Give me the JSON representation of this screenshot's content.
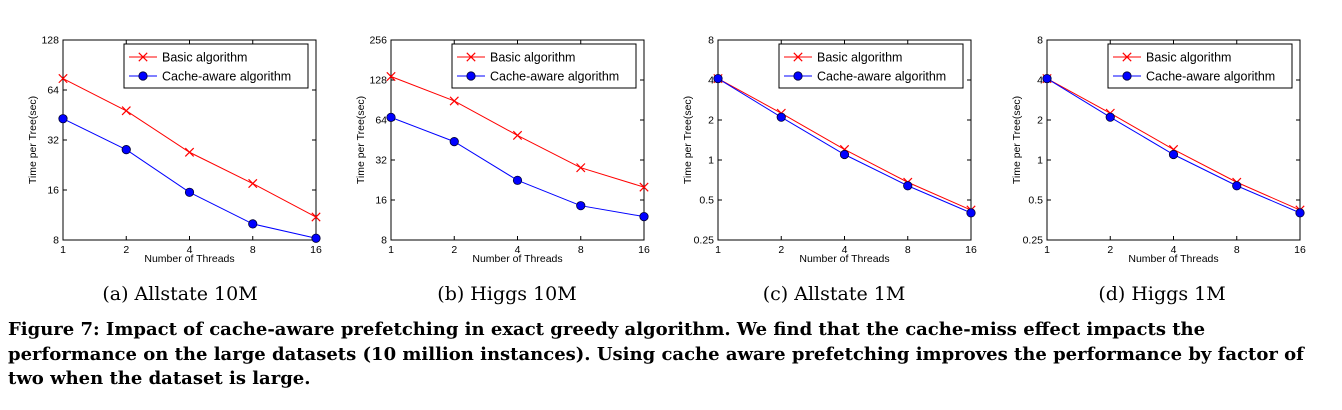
{
  "chart_data": [
    {
      "type": "line",
      "scale": "log2",
      "x": [
        1,
        2,
        4,
        8,
        16
      ],
      "xticks": [
        "1",
        "2",
        "4",
        "8",
        "16"
      ],
      "yticks": [
        {
          "v": 8,
          "label": "8"
        },
        {
          "v": 16,
          "label": "16"
        },
        {
          "v": 32,
          "label": "32"
        },
        {
          "v": 64,
          "label": "64"
        },
        {
          "v": 128,
          "label": "128"
        }
      ],
      "ylim": [
        8,
        128
      ],
      "xlabel": "Number of Threads",
      "ylabel": "Time per Tree(sec)",
      "legend_position": "top-right",
      "series": [
        {
          "name": "Basic algorithm",
          "color": "#ff0000",
          "marker": "x",
          "values": [
            75,
            48,
            27,
            17.5,
            11
          ]
        },
        {
          "name": "Cache-aware algorithm",
          "color": "#0000ff",
          "marker": "circle",
          "values": [
            43,
            28,
            15.5,
            10,
            8.2
          ]
        }
      ],
      "caption": "(a) Allstate 10M"
    },
    {
      "type": "line",
      "scale": "log2",
      "x": [
        1,
        2,
        4,
        8,
        16
      ],
      "xticks": [
        "1",
        "2",
        "4",
        "8",
        "16"
      ],
      "yticks": [
        {
          "v": 8,
          "label": "8"
        },
        {
          "v": 16,
          "label": "16"
        },
        {
          "v": 32,
          "label": "32"
        },
        {
          "v": 64,
          "label": "64"
        },
        {
          "v": 128,
          "label": "128"
        },
        {
          "v": 256,
          "label": "256"
        }
      ],
      "ylim": [
        8,
        256
      ],
      "xlabel": "Number of Threads",
      "ylabel": "Time per Tree(sec)",
      "legend_position": "top-right",
      "series": [
        {
          "name": "Basic algorithm",
          "color": "#ff0000",
          "marker": "x",
          "values": [
            136,
            89,
            49,
            28,
            20
          ]
        },
        {
          "name": "Cache-aware algorithm",
          "color": "#0000ff",
          "marker": "circle",
          "values": [
            67,
            44,
            22.5,
            14.5,
            12
          ]
        }
      ],
      "caption": "(b) Higgs 10M"
    },
    {
      "type": "line",
      "scale": "log2",
      "x": [
        1,
        2,
        4,
        8,
        16
      ],
      "xticks": [
        "1",
        "2",
        "4",
        "8",
        "16"
      ],
      "yticks": [
        {
          "v": 0.25,
          "label": "0.25"
        },
        {
          "v": 0.5,
          "label": "0.5"
        },
        {
          "v": 1,
          "label": "1"
        },
        {
          "v": 2,
          "label": "2"
        },
        {
          "v": 4,
          "label": "4"
        },
        {
          "v": 8,
          "label": "8"
        }
      ],
      "ylim": [
        0.25,
        8
      ],
      "xlabel": "Number of Threads",
      "ylabel": "Time per Tree(sec)",
      "legend_position": "top-right",
      "series": [
        {
          "name": "Basic algorithm",
          "color": "#ff0000",
          "marker": "x",
          "values": [
            4.1,
            2.25,
            1.2,
            0.68,
            0.42
          ]
        },
        {
          "name": "Cache-aware algorithm",
          "color": "#0000ff",
          "marker": "circle",
          "values": [
            4.1,
            2.1,
            1.1,
            0.64,
            0.4
          ]
        }
      ],
      "caption": "(c) Allstate 1M"
    },
    {
      "type": "line",
      "scale": "log2",
      "x": [
        1,
        2,
        4,
        8,
        16
      ],
      "xticks": [
        "1",
        "2",
        "4",
        "8",
        "16"
      ],
      "yticks": [
        {
          "v": 0.25,
          "label": "0.25"
        },
        {
          "v": 0.5,
          "label": "0.5"
        },
        {
          "v": 1,
          "label": "1"
        },
        {
          "v": 2,
          "label": "2"
        },
        {
          "v": 4,
          "label": "4"
        },
        {
          "v": 8,
          "label": "8"
        }
      ],
      "ylim": [
        0.25,
        8
      ],
      "xlabel": "Number of Threads",
      "ylabel": "Time per Tree(sec)",
      "legend_position": "top-right",
      "series": [
        {
          "name": "Basic algorithm",
          "color": "#ff0000",
          "marker": "x",
          "values": [
            4.1,
            2.25,
            1.2,
            0.68,
            0.42
          ]
        },
        {
          "name": "Cache-aware algorithm",
          "color": "#0000ff",
          "marker": "circle",
          "values": [
            4.1,
            2.1,
            1.1,
            0.64,
            0.4
          ]
        }
      ],
      "caption": "(d) Higgs 1M"
    }
  ],
  "figure_caption": "Figure 7: Impact of cache-aware prefetching in exact greedy algorithm. We find that the cache-miss effect impacts the performance on the large datasets (10 million instances). Using cache aware prefetching improves the performance by factor of two when the dataset is large."
}
